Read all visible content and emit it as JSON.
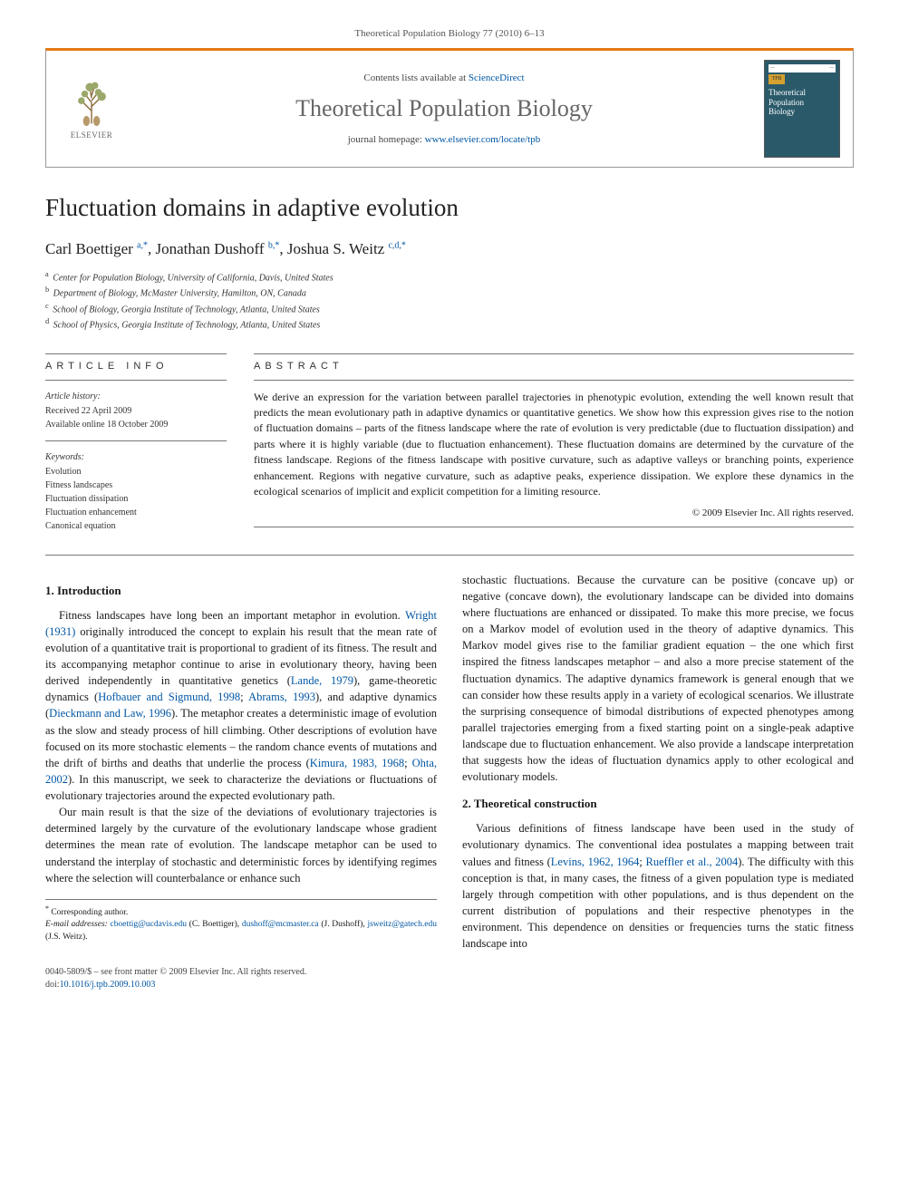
{
  "header_citation": "Theoretical Population Biology 77 (2010) 6–13",
  "banner": {
    "publisher_name": "ELSEVIER",
    "contents_prefix": "Contents lists available at ",
    "contents_link": "ScienceDirect",
    "journal_title": "Theoretical Population Biology",
    "homepage_prefix": "journal homepage: ",
    "homepage_link": "www.elsevier.com/locate/tpb",
    "cover_badge": "TPB",
    "cover_title_line1": "Theoretical",
    "cover_title_line2": "Population",
    "cover_title_line3": "Biology"
  },
  "article": {
    "title": "Fluctuation domains in adaptive evolution",
    "authors_html": "Carl Boettiger <sup>a,*</sup>, Jonathan Dushoff <sup>b,*</sup>, Joshua S. Weitz <sup>c,d,*</sup>",
    "affiliations": [
      "Center for Population Biology, University of California, Davis, United States",
      "Department of Biology, McMaster University, Hamilton, ON, Canada",
      "School of Biology, Georgia Institute of Technology, Atlanta, United States",
      "School of Physics, Georgia Institute of Technology, Atlanta, United States"
    ],
    "aff_super": [
      "a",
      "b",
      "c",
      "d"
    ]
  },
  "info": {
    "label": "ARTICLE INFO",
    "history_head": "Article history:",
    "received": "Received 22 April 2009",
    "online": "Available online 18 October 2009",
    "keywords_head": "Keywords:",
    "keywords": [
      "Evolution",
      "Fitness landscapes",
      "Fluctuation dissipation",
      "Fluctuation enhancement",
      "Canonical equation"
    ]
  },
  "abstract": {
    "label": "ABSTRACT",
    "text": "We derive an expression for the variation between parallel trajectories in phenotypic evolution, extending the well known result that predicts the mean evolutionary path in adaptive dynamics or quantitative genetics. We show how this expression gives rise to the notion of fluctuation domains – parts of the fitness landscape where the rate of evolution is very predictable (due to fluctuation dissipation) and parts where it is highly variable (due to fluctuation enhancement). These fluctuation domains are determined by the curvature of the fitness landscape. Regions of the fitness landscape with positive curvature, such as adaptive valleys or branching points, experience enhancement. Regions with negative curvature, such as adaptive peaks, experience dissipation. We explore these dynamics in the ecological scenarios of implicit and explicit competition for a limiting resource.",
    "copyright": "© 2009 Elsevier Inc. All rights reserved."
  },
  "sections": {
    "s1_title": "1. Introduction",
    "s1_p1a": "Fitness landscapes have long been an important metaphor in evolution. ",
    "s1_p1_cite1": "Wright (1931)",
    "s1_p1b": " originally introduced the concept to explain his result that the mean rate of evolution of a quantitative trait is proportional to gradient of its fitness. The result and its accompanying metaphor continue to arise in evolutionary theory, having been derived independently in quantitative genetics (",
    "s1_p1_cite2": "Lande, 1979",
    "s1_p1c": "), game-theoretic dynamics (",
    "s1_p1_cite3": "Hofbauer and Sigmund, 1998",
    "s1_p1d": "; ",
    "s1_p1_cite4": "Abrams, 1993",
    "s1_p1e": "), and adaptive dynamics (",
    "s1_p1_cite5": "Dieckmann and Law, 1996",
    "s1_p1f": "). The metaphor creates a deterministic image of evolution as the slow and steady process of hill climbing. Other descriptions of evolution have focused on its more stochastic elements – the random chance events of mutations and the drift of births and deaths that underlie the process (",
    "s1_p1_cite6": "Kimura, 1983, 1968",
    "s1_p1g": "; ",
    "s1_p1_cite7": "Ohta, 2002",
    "s1_p1h": "). In this manuscript, we seek to characterize the deviations or fluctuations of evolutionary trajectories around the expected evolutionary path.",
    "s1_p2": "Our main result is that the size of the deviations of evolutionary trajectories is determined largely by the curvature of the evolutionary landscape whose gradient determines the mean rate of evolution. The landscape metaphor can be used to understand the interplay of stochastic and deterministic forces by identifying regimes where the selection will counterbalance or enhance such",
    "s1_p2b": "stochastic fluctuations. Because the curvature can be positive (concave up) or negative (concave down), the evolutionary landscape can be divided into domains where fluctuations are enhanced or dissipated. To make this more precise, we focus on a Markov model of evolution used in the theory of adaptive dynamics. This Markov model gives rise to the familiar gradient equation – the one which first inspired the fitness landscapes metaphor – and also a more precise statement of the fluctuation dynamics. The adaptive dynamics framework is general enough that we can consider how these results apply in a variety of ecological scenarios. We illustrate the surprising consequence of bimodal distributions of expected phenotypes among parallel trajectories emerging from a fixed starting point on a single-peak adaptive landscape due to fluctuation enhancement. We also provide a landscape interpretation that suggests how the ideas of fluctuation dynamics apply to other ecological and evolutionary models.",
    "s2_title": "2. Theoretical construction",
    "s2_p1a": "Various definitions of fitness landscape have been used in the study of evolutionary dynamics. The conventional idea postulates a mapping between trait values and fitness (",
    "s2_p1_cite1": "Levins, 1962, 1964",
    "s2_p1b": "; ",
    "s2_p1_cite2": "Rueffler et al., 2004",
    "s2_p1c": "). The difficulty with this conception is that, in many cases, the fitness of a given population type is mediated largely through competition with other populations, and is thus dependent on the current distribution of populations and their respective phenotypes in the environment. This dependence on densities or frequencies turns the static fitness landscape into"
  },
  "footnotes": {
    "corr": "Corresponding author.",
    "email_label": "E-mail addresses:",
    "emails": [
      {
        "addr": "cboettig@ucdavis.edu",
        "who": "(C. Boettiger),"
      },
      {
        "addr": "dushoff@mcmaster.ca",
        "who": "(J. Dushoff),"
      },
      {
        "addr": "jsweitz@gatech.edu",
        "who": "(J.S. Weitz)."
      }
    ]
  },
  "bottom": {
    "left_line1": "0040-5809/$ – see front matter © 2009 Elsevier Inc. All rights reserved.",
    "doi_prefix": "doi:",
    "doi": "10.1016/j.tpb.2009.10.003"
  },
  "colors": {
    "accent_orange": "#e67817",
    "link_blue": "#0056a3",
    "cover_bg": "#2a5a6a",
    "cover_badge": "#d4a030",
    "text": "#1a1a1a",
    "rule": "#777777"
  }
}
